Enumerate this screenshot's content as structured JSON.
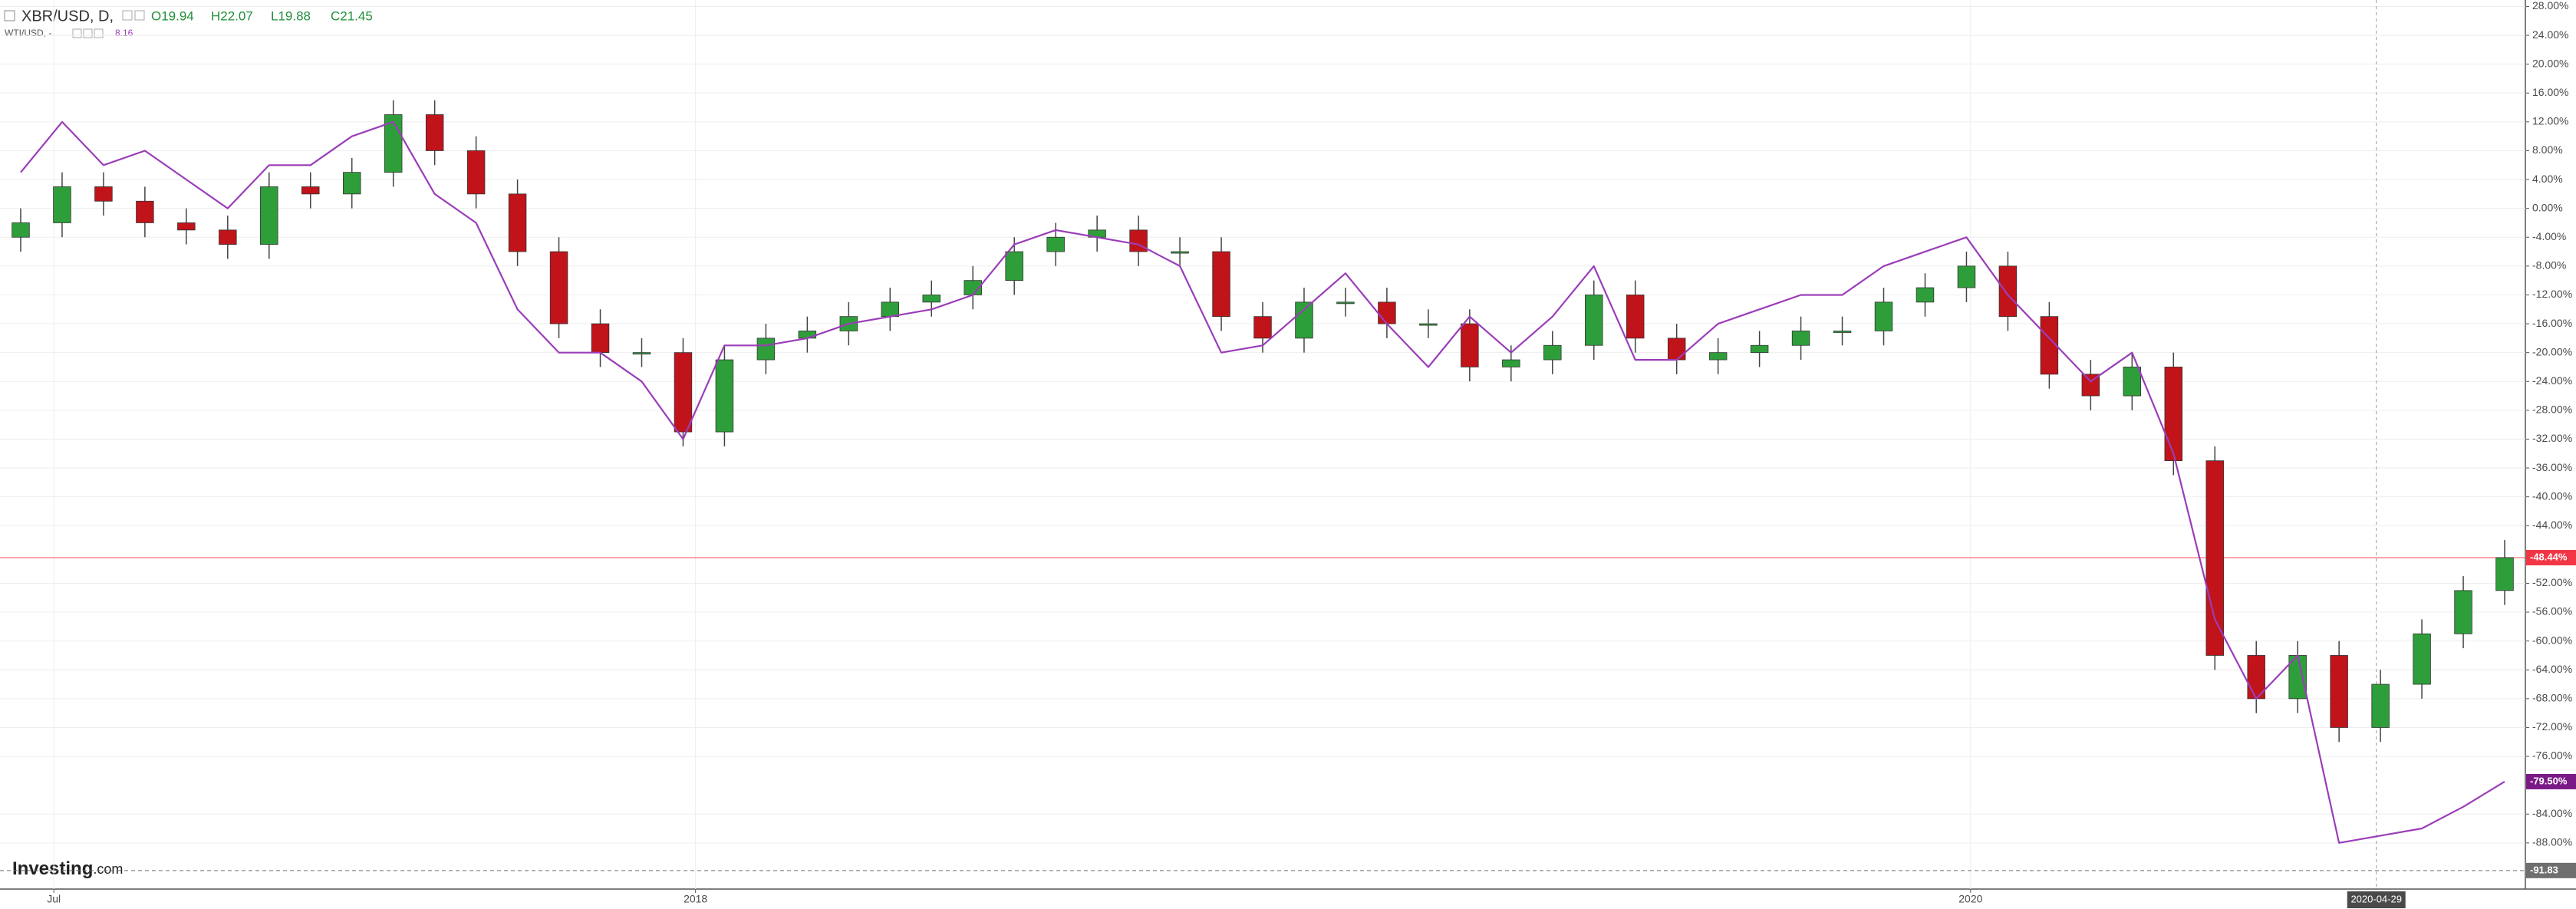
{
  "chart_data": {
    "type": "candlestick",
    "ohlc_labels": [
      "O19.94",
      "H22.07",
      "L19.88",
      "C21.45"
    ],
    "series": [
      {
        "name": "XBR/USD, D,",
        "type": "candlestick",
        "up_color": "#2e9e3a",
        "down_color": "#c0141a",
        "open": [
          -4,
          -2,
          3,
          1,
          -2,
          -3,
          -5,
          3,
          2,
          5,
          13,
          8,
          2,
          -6,
          -16,
          -20,
          -20,
          -31,
          -21,
          -18,
          -17,
          -15,
          -13,
          -12,
          -10,
          -6,
          -4,
          -3,
          -6,
          -6,
          -15,
          -18,
          -13,
          -13,
          -16,
          -16,
          -22,
          -21,
          -19,
          -12,
          -18,
          -21,
          -20,
          -19,
          -17,
          -17,
          -13,
          -11,
          -8,
          -15,
          -23,
          -26,
          -22,
          -35,
          -62,
          -68,
          -62,
          -72,
          -66,
          -59,
          -53
        ],
        "high": [
          0,
          5,
          5,
          3,
          0,
          -1,
          5,
          5,
          7,
          15,
          15,
          10,
          4,
          -4,
          -14,
          -18,
          -18,
          -19,
          -16,
          -15,
          -13,
          -11,
          -10,
          -8,
          -4,
          -2,
          -1,
          -1,
          -4,
          -4,
          -13,
          -11,
          -11,
          -11,
          -14,
          -14,
          -19,
          -17,
          -10,
          -10,
          -16,
          -18,
          -17,
          -15,
          -15,
          -11,
          -9,
          -6,
          -6,
          -13,
          -21,
          -20,
          -20,
          -33,
          -60,
          -60,
          -60,
          -64,
          -57,
          -51,
          -46
        ],
        "low": [
          -6,
          -4,
          -1,
          -4,
          -5,
          -7,
          -7,
          0,
          0,
          3,
          6,
          0,
          -8,
          -18,
          -22,
          -22,
          -33,
          -33,
          -23,
          -20,
          -19,
          -17,
          -15,
          -14,
          -12,
          -8,
          -6,
          -8,
          -8,
          -17,
          -20,
          -20,
          -15,
          -18,
          -18,
          -24,
          -24,
          -23,
          -21,
          -20,
          -23,
          -23,
          -22,
          -21,
          -19,
          -19,
          -15,
          -13,
          -17,
          -25,
          -28,
          -28,
          -37,
          -64,
          -70,
          -70,
          -74,
          -74,
          -68,
          -61,
          -55
        ],
        "close": [
          -2,
          3,
          1,
          -2,
          -3,
          -5,
          3,
          2,
          5,
          13,
          8,
          2,
          -6,
          -16,
          -20,
          -20,
          -31,
          -21,
          -18,
          -17,
          -15,
          -13,
          -12,
          -10,
          -6,
          -4,
          -3,
          -6,
          -6,
          -15,
          -18,
          -13,
          -13,
          -16,
          -16,
          -22,
          -21,
          -19,
          -12,
          -18,
          -21,
          -20,
          -19,
          -17,
          -17,
          -13,
          -11,
          -8,
          -15,
          -23,
          -26,
          -22,
          -35,
          -62,
          -68,
          -62,
          -72,
          -66,
          -59,
          -53,
          -48.44
        ]
      },
      {
        "name": "WTI/USD, -",
        "type": "line",
        "color": "#9b3db8",
        "last_label": "8.16",
        "values": [
          5,
          12,
          6,
          8,
          4,
          0,
          6,
          6,
          10,
          12,
          2,
          -2,
          -14,
          -20,
          -20,
          -24,
          -32,
          -19,
          -19,
          -18,
          -16,
          -15,
          -14,
          -12,
          -5,
          -3,
          -4,
          -5,
          -8,
          -20,
          -19,
          -14,
          -9,
          -16,
          -22,
          -15,
          -20,
          -15,
          -8,
          -21,
          -21,
          -16,
          -14,
          -12,
          -12,
          -8,
          -6,
          -4,
          -12,
          -18,
          -24,
          -20,
          -34,
          -57,
          -68,
          -62,
          -88,
          -87,
          -86,
          -83,
          -79.5
        ]
      }
    ],
    "ylim": [
      -94.4,
      28.9
    ],
    "yticks": [
      {
        "value": 28,
        "label": "28.00%"
      },
      {
        "value": 24,
        "label": "24.00%"
      },
      {
        "value": 20,
        "label": "20.00%"
      },
      {
        "value": 16,
        "label": "16.00%"
      },
      {
        "value": 12,
        "label": "12.00%"
      },
      {
        "value": 8,
        "label": "8.00%"
      },
      {
        "value": 4,
        "label": "4.00%"
      },
      {
        "value": 0,
        "label": "0.00%"
      },
      {
        "value": -4,
        "label": "-4.00%"
      },
      {
        "value": -8,
        "label": "-8.00%"
      },
      {
        "value": -12,
        "label": "-12.00%"
      },
      {
        "value": -16,
        "label": "-16.00%"
      },
      {
        "value": -20,
        "label": "-20.00%"
      },
      {
        "value": -24,
        "label": "-24.00%"
      },
      {
        "value": -28,
        "label": "-28.00%"
      },
      {
        "value": -32,
        "label": "-32.00%"
      },
      {
        "value": -36,
        "label": "-36.00%"
      },
      {
        "value": -40,
        "label": "-40.00%"
      },
      {
        "value": -44,
        "label": "-44.00%"
      },
      {
        "value": -52,
        "label": "-52.00%"
      },
      {
        "value": -56,
        "label": "-56.00%"
      },
      {
        "value": -60,
        "label": "-60.00%"
      },
      {
        "value": -64,
        "label": "-64.00%"
      },
      {
        "value": -68,
        "label": "-68.00%"
      },
      {
        "value": -72,
        "label": "-72.00%"
      },
      {
        "value": -76,
        "label": "-76.00%"
      },
      {
        "value": -84,
        "label": "-84.00%"
      },
      {
        "value": -88,
        "label": "-88.00%"
      }
    ],
    "xlim": [
      -0.5,
      60.5
    ],
    "xticks": [
      {
        "value": 0.8,
        "label": "Jul"
      },
      {
        "value": 16.3,
        "label": "2018"
      },
      {
        "value": 47.1,
        "label": "2020"
      }
    ],
    "crosshair": {
      "value": 56.9,
      "label": "2020-04-29"
    },
    "price_lines": [
      {
        "value": -48.44,
        "label": "-48.44%",
        "color": "#f23645",
        "style": "solid"
      },
      {
        "value": -79.5,
        "label": "-79.50%",
        "color": "#7b1a86",
        "style": "none"
      },
      {
        "value": -91.83,
        "label": "-91.83",
        "color": "#6f6f6f",
        "style": "dashed"
      }
    ],
    "grid": true,
    "logo": {
      "brand": "Investing",
      "suffix": ".com"
    }
  }
}
